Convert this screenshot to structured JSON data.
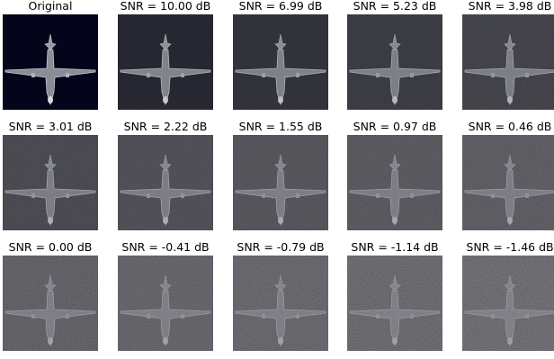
{
  "figure": {
    "panels": [
      {
        "label": "Original",
        "background": "#04041a",
        "contrast": 1.0,
        "noise": 0.0
      },
      {
        "label": "SNR = 10.00 dB",
        "background": "#23232e",
        "contrast": 0.9,
        "noise": 0.1
      },
      {
        "label": "SNR = 6.99 dB",
        "background": "#2c2c36",
        "contrast": 0.85,
        "noise": 0.16
      },
      {
        "label": "SNR = 5.23 dB",
        "background": "#33333c",
        "contrast": 0.8,
        "noise": 0.22
      },
      {
        "label": "SNR = 3.98 dB",
        "background": "#393941",
        "contrast": 0.76,
        "noise": 0.28
      },
      {
        "label": "SNR = 3.01 dB",
        "background": "#3e3e46",
        "contrast": 0.72,
        "noise": 0.34
      },
      {
        "label": "SNR = 2.22 dB",
        "background": "#42424a",
        "contrast": 0.69,
        "noise": 0.4
      },
      {
        "label": "SNR = 1.55 dB",
        "background": "#46464d",
        "contrast": 0.66,
        "noise": 0.45
      },
      {
        "label": "SNR = 0.97 dB",
        "background": "#494950",
        "contrast": 0.63,
        "noise": 0.5
      },
      {
        "label": "SNR = 0.46 dB",
        "background": "#4c4c53",
        "contrast": 0.6,
        "noise": 0.55
      },
      {
        "label": "SNR = 0.00 dB",
        "background": "#4f4f56",
        "contrast": 0.58,
        "noise": 0.6
      },
      {
        "label": "SNR = -0.41 dB",
        "background": "#515158",
        "contrast": 0.56,
        "noise": 0.64
      },
      {
        "label": "SNR = -0.79 dB",
        "background": "#53535a",
        "contrast": 0.54,
        "noise": 0.68
      },
      {
        "label": "SNR = -1.14 dB",
        "background": "#55555c",
        "contrast": 0.52,
        "noise": 0.72
      },
      {
        "label": "SNR = -1.46 dB",
        "background": "#57575e",
        "contrast": 0.5,
        "noise": 0.76
      }
    ]
  }
}
